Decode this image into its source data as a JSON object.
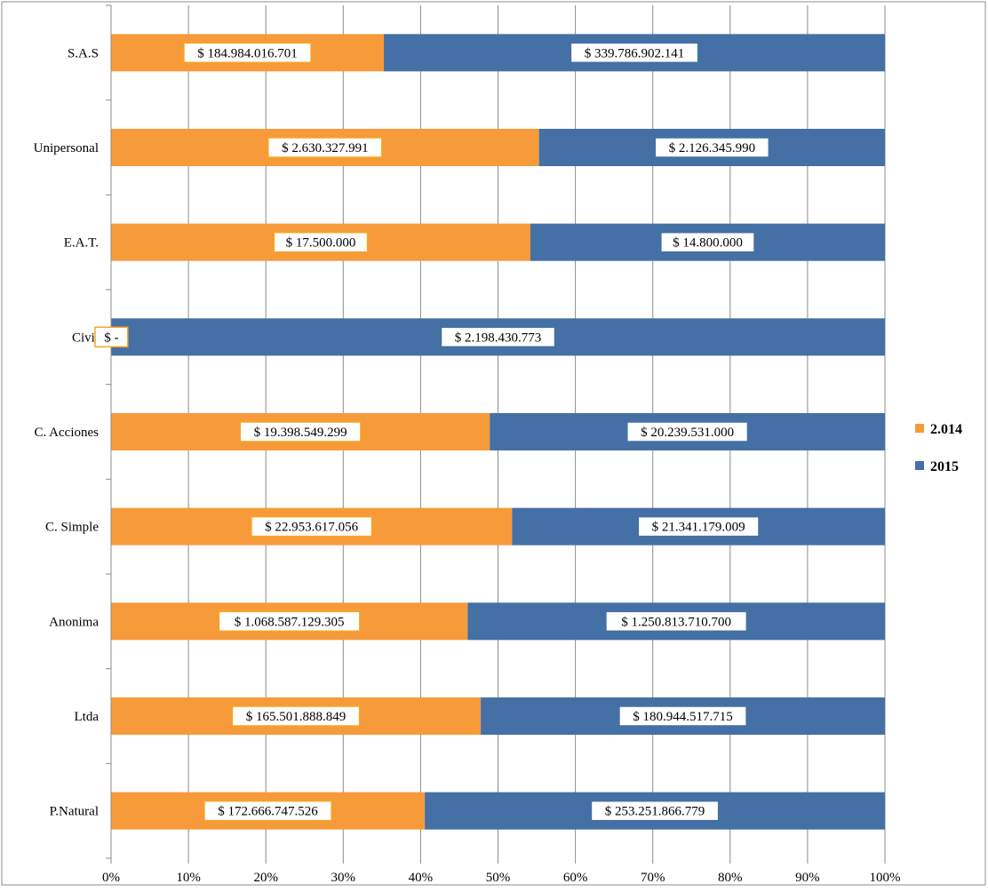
{
  "chart_data": {
    "type": "bar",
    "orientation": "horizontal",
    "stacking": "percent",
    "categories": [
      "P.Natural",
      "Ltda",
      "Anonima",
      "C. Simple",
      "C. Acciones",
      "Civil",
      "E.A.T.",
      "Unipersonal",
      "S.A.S"
    ],
    "series": [
      {
        "name": "2.014",
        "color": "#f79a3a",
        "values": [
          172666747526,
          165501888849,
          1068587129305,
          22953617056,
          19398549299,
          0,
          17500000,
          2630327991,
          184984016701
        ],
        "labels": [
          "$ 172.666.747.526",
          "$ 165.501.888.849",
          "$ 1.068.587.129.305",
          "$ 22.953.617.056",
          "$ 19.398.549.299",
          "$ -",
          "$ 17.500.000",
          "$ 2.630.327.991",
          "$ 184.984.016.701"
        ]
      },
      {
        "name": "2015",
        "color": "#4470a6",
        "values": [
          253251866779,
          180944517715,
          1250813710700,
          21341179009,
          20239531000,
          2198430773,
          14800000,
          2126345990,
          339786902141
        ],
        "labels": [
          "$ 253.251.866.779",
          "$ 180.944.517.715",
          "$ 1.250.813.710.700",
          "$ 21.341.179.009",
          "$ 20.239.531.000",
          "$ 2.198.430.773",
          "$ 14.800.000",
          "$ 2.126.345.990",
          "$ 339.786.902.141"
        ]
      }
    ],
    "x_ticks": [
      "0%",
      "10%",
      "20%",
      "30%",
      "40%",
      "50%",
      "60%",
      "70%",
      "80%",
      "90%",
      "100%"
    ],
    "xlim": [
      0,
      100
    ],
    "grid": true,
    "legend_position": "right"
  }
}
